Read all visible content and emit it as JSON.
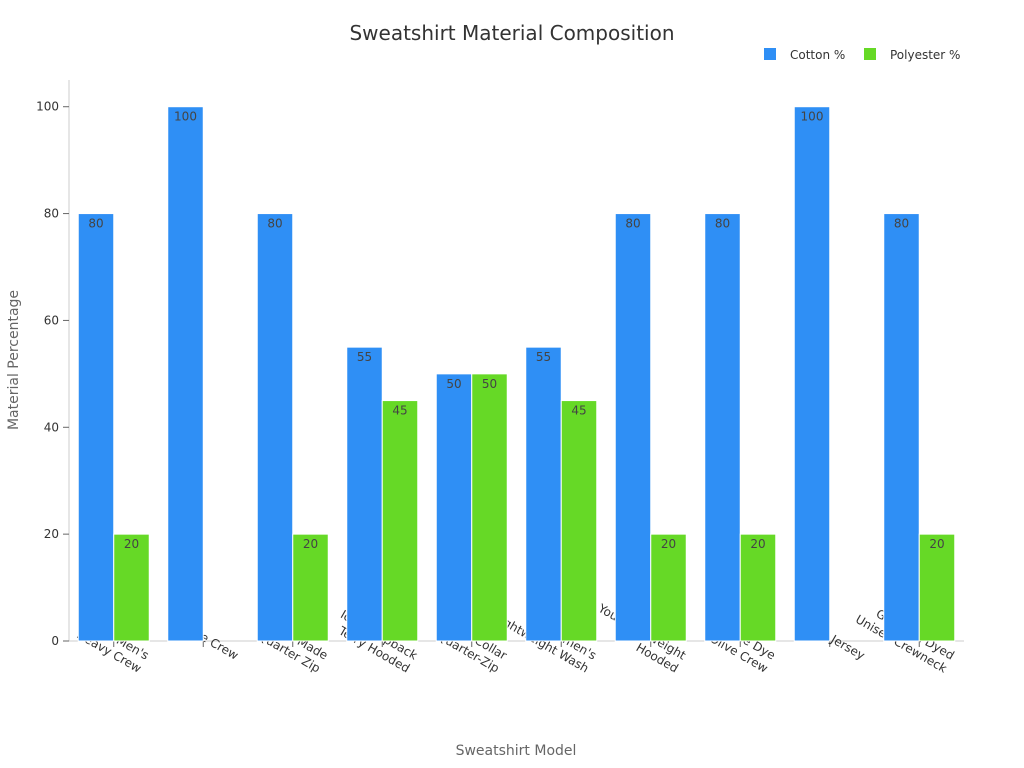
{
  "chart_data": {
    "type": "bar",
    "title": "Sweatshirt Material Composition",
    "xlabel": "Sweatshirt Model",
    "ylabel": "Material Percentage",
    "ylim": [
      0,
      105
    ],
    "yticks": [
      0,
      20,
      40,
      60,
      80,
      100
    ],
    "categories": [
      [
        "Men's",
        "Heavy Crew"
      ],
      [
        "Made Crew"
      ],
      [
        "USA Made",
        "Quarter Zip"
      ],
      [
        "Icon Loopback",
        "Terry Hooded"
      ],
      [
        "Cadet Collar",
        "Quarter-Zip"
      ],
      [
        "Women's",
        "Lightweight Wash"
      ],
      [
        "Youth Midweight",
        "Hooded"
      ],
      [
        "Tie Dye",
        "Olive Crew"
      ],
      [
        "Rugby Jersey"
      ],
      [
        "Garment Dyed",
        "Unisex Crewneck"
      ]
    ],
    "series": [
      {
        "name": "Cotton %",
        "color": "#2f8ff5",
        "values": [
          80,
          100,
          80,
          55,
          50,
          55,
          80,
          80,
          100,
          80
        ]
      },
      {
        "name": "Polyester %",
        "color": "#66d926",
        "values": [
          20,
          0,
          20,
          45,
          50,
          45,
          20,
          20,
          0,
          20
        ]
      }
    ],
    "legend_position": "top-right",
    "grid": false
  }
}
